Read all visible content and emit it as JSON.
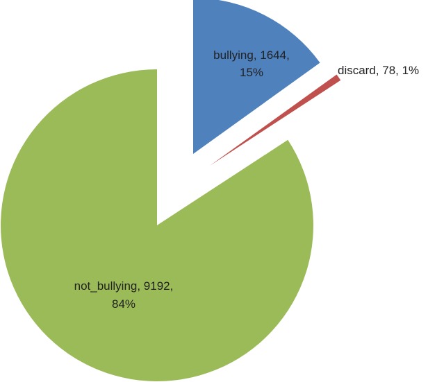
{
  "chart_data": {
    "type": "pie",
    "title": "",
    "categories": [
      "bullying",
      "discard",
      "not_bullying"
    ],
    "values": [
      1644,
      78,
      9192
    ],
    "percents": [
      "15%",
      "1%",
      "84%"
    ],
    "colors": [
      "#4f81bd",
      "#c0504d",
      "#9bbb59"
    ],
    "exploded": true,
    "legend": "none",
    "labels": [
      {
        "line1": "bullying, 1644,",
        "line2": "15%"
      },
      {
        "line1": "discard, 78, 1%",
        "line2": ""
      },
      {
        "line1": "not_bullying, 9192,",
        "line2": "84%"
      }
    ]
  }
}
